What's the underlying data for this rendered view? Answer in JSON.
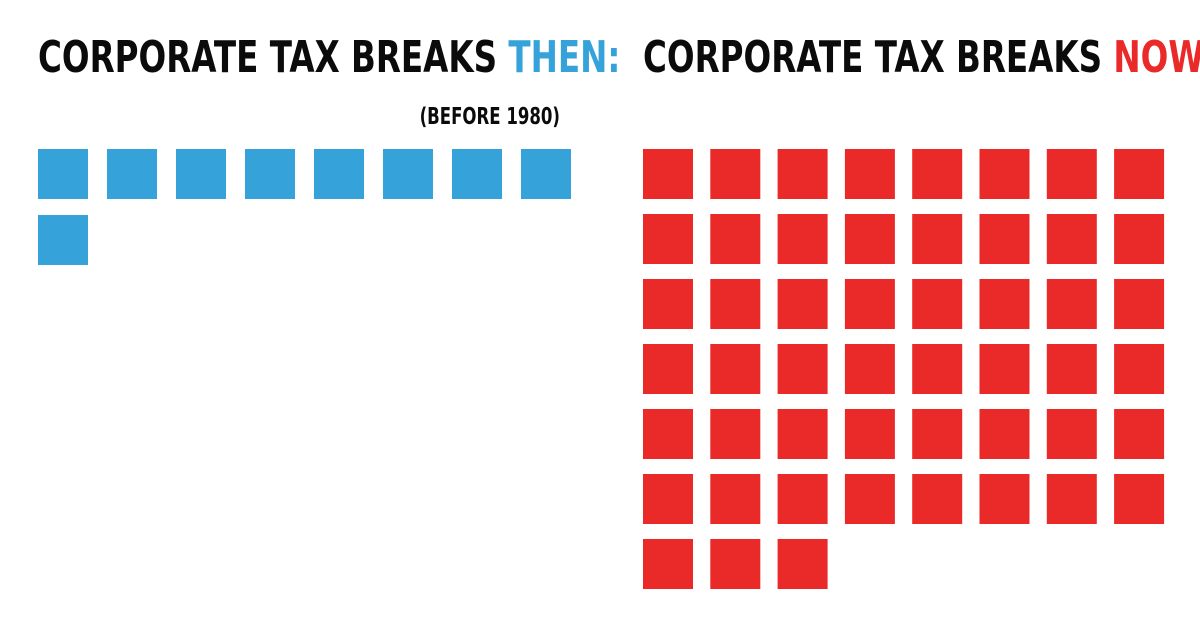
{
  "panels": {
    "then": {
      "title_prefix": "CORPORATE TAX BREAKS ",
      "title_accent": "THEN:",
      "subtitle": "(BEFORE 1980)",
      "accent_color": "#35a2da"
    },
    "now": {
      "title_prefix": "CORPORATE TAX BREAKS ",
      "title_accent": "NOW:",
      "accent_color": "#ea2a29"
    }
  },
  "chart_data": [
    {
      "type": "bar",
      "title": "CORPORATE TAX BREAKS THEN:",
      "subtitle": "(BEFORE 1980)",
      "unit_display": "square icons",
      "per_row": 8,
      "values": [
        9
      ],
      "color": "#35a2da"
    },
    {
      "type": "bar",
      "title": "CORPORATE TAX BREAKS NOW:",
      "unit_display": "square icons",
      "per_row": 8,
      "values": [
        51
      ],
      "color": "#ea2a29"
    }
  ]
}
